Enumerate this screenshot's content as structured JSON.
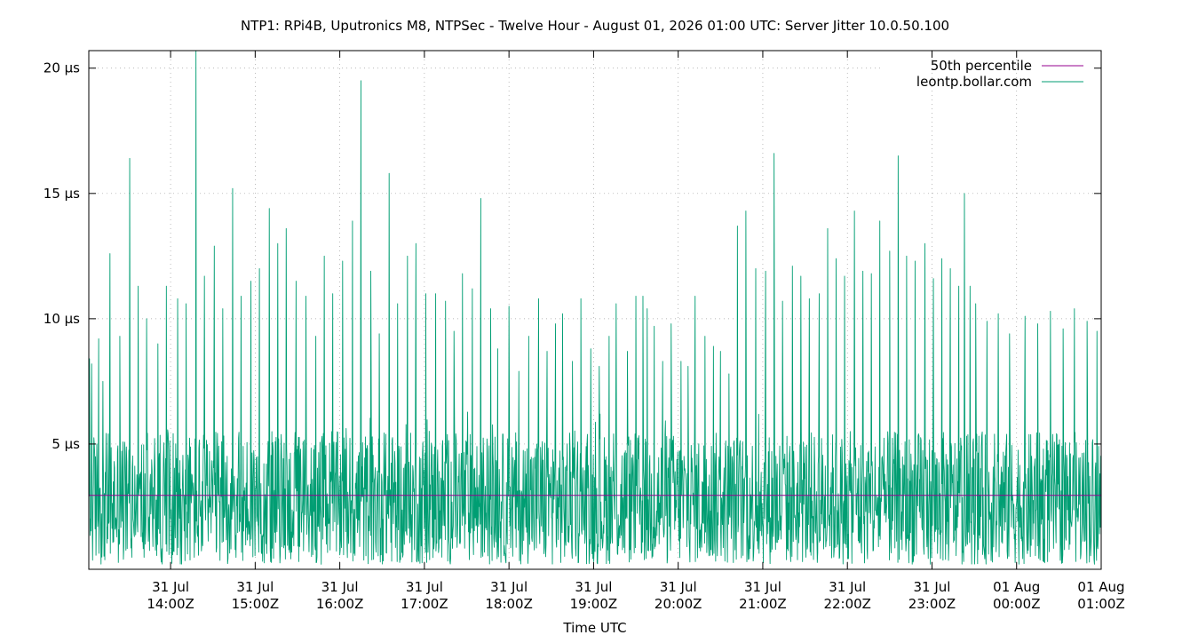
{
  "chart_data": {
    "type": "line",
    "title": "NTP1: RPi4B, Uputronics M8, NTPSec - Twelve Hour - August 01, 2026 01:00 UTC: Server Jitter 10.0.50.100",
    "xlabel": "Time UTC",
    "ylabel": "",
    "x_range": [
      "2026-07-31T13:02:00Z",
      "2026-08-01T01:00:00Z"
    ],
    "ylim": [
      0,
      20.7
    ],
    "grid": true,
    "legend_position": "top-right",
    "x_ticks": [
      {
        "x": "2026-07-31T14:00:00Z",
        "line1": "31 Jul",
        "line2": "14:00Z"
      },
      {
        "x": "2026-07-31T15:00:00Z",
        "line1": "31 Jul",
        "line2": "15:00Z"
      },
      {
        "x": "2026-07-31T16:00:00Z",
        "line1": "31 Jul",
        "line2": "16:00Z"
      },
      {
        "x": "2026-07-31T17:00:00Z",
        "line1": "31 Jul",
        "line2": "17:00Z"
      },
      {
        "x": "2026-07-31T18:00:00Z",
        "line1": "31 Jul",
        "line2": "18:00Z"
      },
      {
        "x": "2026-07-31T19:00:00Z",
        "line1": "31 Jul",
        "line2": "19:00Z"
      },
      {
        "x": "2026-07-31T20:00:00Z",
        "line1": "31 Jul",
        "line2": "20:00Z"
      },
      {
        "x": "2026-07-31T21:00:00Z",
        "line1": "31 Jul",
        "line2": "21:00Z"
      },
      {
        "x": "2026-07-31T22:00:00Z",
        "line1": "31 Jul",
        "line2": "22:00Z"
      },
      {
        "x": "2026-07-31T23:00:00Z",
        "line1": "31 Jul",
        "line2": "23:00Z"
      },
      {
        "x": "2026-08-01T00:00:00Z",
        "line1": "01 Aug",
        "line2": "00:00Z"
      },
      {
        "x": "2026-08-01T01:00:00Z",
        "line1": "01 Aug",
        "line2": "01:00Z"
      }
    ],
    "y_ticks": [
      {
        "y": 5,
        "label": "5 µs"
      },
      {
        "y": 10,
        "label": "10 µs"
      },
      {
        "y": 15,
        "label": "15 µs"
      },
      {
        "y": 20,
        "label": "20 µs"
      }
    ],
    "series": [
      {
        "name": "50th percentile",
        "color": "#94008f",
        "kind": "constant",
        "value": 2.95
      },
      {
        "name": "leontp.bollar.com",
        "color": "#009e73",
        "kind": "noisy",
        "baseline_min": 0.2,
        "baseline_max": 5.5,
        "peaks": [
          {
            "x": "2026-07-31T13:02:30Z",
            "y": 8.4
          },
          {
            "x": "2026-07-31T13:04:00Z",
            "y": 8.2
          },
          {
            "x": "2026-07-31T13:09:00Z",
            "y": 9.2
          },
          {
            "x": "2026-07-31T13:12:00Z",
            "y": 7.5
          },
          {
            "x": "2026-07-31T13:17:00Z",
            "y": 12.6
          },
          {
            "x": "2026-07-31T13:24:00Z",
            "y": 9.3
          },
          {
            "x": "2026-07-31T13:31:00Z",
            "y": 16.4
          },
          {
            "x": "2026-07-31T13:37:00Z",
            "y": 11.3
          },
          {
            "x": "2026-07-31T13:43:00Z",
            "y": 10.0
          },
          {
            "x": "2026-07-31T13:51:00Z",
            "y": 9.0
          },
          {
            "x": "2026-07-31T13:57:00Z",
            "y": 11.3
          },
          {
            "x": "2026-07-31T14:05:00Z",
            "y": 10.8
          },
          {
            "x": "2026-07-31T14:11:00Z",
            "y": 10.6
          },
          {
            "x": "2026-07-31T14:18:00Z",
            "y": 20.7
          },
          {
            "x": "2026-07-31T14:24:00Z",
            "y": 11.7
          },
          {
            "x": "2026-07-31T14:31:00Z",
            "y": 12.9
          },
          {
            "x": "2026-07-31T14:37:00Z",
            "y": 10.4
          },
          {
            "x": "2026-07-31T14:44:00Z",
            "y": 15.2
          },
          {
            "x": "2026-07-31T14:50:00Z",
            "y": 10.9
          },
          {
            "x": "2026-07-31T14:57:00Z",
            "y": 11.5
          },
          {
            "x": "2026-07-31T15:03:00Z",
            "y": 12.0
          },
          {
            "x": "2026-07-31T15:10:00Z",
            "y": 14.4
          },
          {
            "x": "2026-07-31T15:16:00Z",
            "y": 13.0
          },
          {
            "x": "2026-07-31T15:22:00Z",
            "y": 13.6
          },
          {
            "x": "2026-07-31T15:29:00Z",
            "y": 11.5
          },
          {
            "x": "2026-07-31T15:36:00Z",
            "y": 10.9
          },
          {
            "x": "2026-07-31T15:43:00Z",
            "y": 9.3
          },
          {
            "x": "2026-07-31T15:49:00Z",
            "y": 12.5
          },
          {
            "x": "2026-07-31T15:55:00Z",
            "y": 11.0
          },
          {
            "x": "2026-07-31T16:02:00Z",
            "y": 12.3
          },
          {
            "x": "2026-07-31T16:09:00Z",
            "y": 13.9
          },
          {
            "x": "2026-07-31T16:15:00Z",
            "y": 19.5
          },
          {
            "x": "2026-07-31T16:22:00Z",
            "y": 11.9
          },
          {
            "x": "2026-07-31T16:28:00Z",
            "y": 9.4
          },
          {
            "x": "2026-07-31T16:35:00Z",
            "y": 15.8
          },
          {
            "x": "2026-07-31T16:41:00Z",
            "y": 10.6
          },
          {
            "x": "2026-07-31T16:48:00Z",
            "y": 12.5
          },
          {
            "x": "2026-07-31T16:54:00Z",
            "y": 13.0
          },
          {
            "x": "2026-07-31T17:01:00Z",
            "y": 11.0
          },
          {
            "x": "2026-07-31T17:08:00Z",
            "y": 11.0
          },
          {
            "x": "2026-07-31T17:15:00Z",
            "y": 10.7
          },
          {
            "x": "2026-07-31T17:21:00Z",
            "y": 9.5
          },
          {
            "x": "2026-07-31T17:27:00Z",
            "y": 11.8
          },
          {
            "x": "2026-07-31T17:34:00Z",
            "y": 11.2
          },
          {
            "x": "2026-07-31T17:40:00Z",
            "y": 14.8
          },
          {
            "x": "2026-07-31T17:47:00Z",
            "y": 10.4
          },
          {
            "x": "2026-07-31T17:52:00Z",
            "y": 8.8
          },
          {
            "x": "2026-07-31T18:00:00Z",
            "y": 10.5
          },
          {
            "x": "2026-07-31T18:07:00Z",
            "y": 7.9
          },
          {
            "x": "2026-07-31T18:14:00Z",
            "y": 9.3
          },
          {
            "x": "2026-07-31T18:21:00Z",
            "y": 10.8
          },
          {
            "x": "2026-07-31T18:27:00Z",
            "y": 8.7
          },
          {
            "x": "2026-07-31T18:33:00Z",
            "y": 9.8
          },
          {
            "x": "2026-07-31T18:38:00Z",
            "y": 10.2
          },
          {
            "x": "2026-07-31T18:45:00Z",
            "y": 8.3
          },
          {
            "x": "2026-07-31T18:51:00Z",
            "y": 10.8
          },
          {
            "x": "2026-07-31T18:58:00Z",
            "y": 8.8
          },
          {
            "x": "2026-07-31T19:04:00Z",
            "y": 8.1
          },
          {
            "x": "2026-07-31T19:11:00Z",
            "y": 9.3
          },
          {
            "x": "2026-07-31T19:16:00Z",
            "y": 10.6
          },
          {
            "x": "2026-07-31T19:24:00Z",
            "y": 8.7
          },
          {
            "x": "2026-07-31T19:30:00Z",
            "y": 10.9
          },
          {
            "x": "2026-07-31T19:35:00Z",
            "y": 10.9
          },
          {
            "x": "2026-07-31T19:38:00Z",
            "y": 10.4
          },
          {
            "x": "2026-07-31T19:43:00Z",
            "y": 9.7
          },
          {
            "x": "2026-07-31T19:49:00Z",
            "y": 8.3
          },
          {
            "x": "2026-07-31T19:55:00Z",
            "y": 9.8
          },
          {
            "x": "2026-07-31T20:02:00Z",
            "y": 8.3
          },
          {
            "x": "2026-07-31T20:07:00Z",
            "y": 8.1
          },
          {
            "x": "2026-07-31T20:12:00Z",
            "y": 10.9
          },
          {
            "x": "2026-07-31T20:19:00Z",
            "y": 9.3
          },
          {
            "x": "2026-07-31T20:25:00Z",
            "y": 8.9
          },
          {
            "x": "2026-07-31T20:30:00Z",
            "y": 8.7
          },
          {
            "x": "2026-07-31T20:36:00Z",
            "y": 7.8
          },
          {
            "x": "2026-07-31T20:42:00Z",
            "y": 13.7
          },
          {
            "x": "2026-07-31T20:48:00Z",
            "y": 14.3
          },
          {
            "x": "2026-07-31T20:55:00Z",
            "y": 12.0
          },
          {
            "x": "2026-07-31T21:02:00Z",
            "y": 11.9
          },
          {
            "x": "2026-07-31T21:08:00Z",
            "y": 16.6
          },
          {
            "x": "2026-07-31T21:14:00Z",
            "y": 10.7
          },
          {
            "x": "2026-07-31T21:21:00Z",
            "y": 12.1
          },
          {
            "x": "2026-07-31T21:27:00Z",
            "y": 11.7
          },
          {
            "x": "2026-07-31T21:33:00Z",
            "y": 10.8
          },
          {
            "x": "2026-07-31T21:40:00Z",
            "y": 11.0
          },
          {
            "x": "2026-07-31T21:46:00Z",
            "y": 13.6
          },
          {
            "x": "2026-07-31T21:52:00Z",
            "y": 12.4
          },
          {
            "x": "2026-07-31T21:58:00Z",
            "y": 11.7
          },
          {
            "x": "2026-07-31T22:05:00Z",
            "y": 14.3
          },
          {
            "x": "2026-07-31T22:11:00Z",
            "y": 11.9
          },
          {
            "x": "2026-07-31T22:17:00Z",
            "y": 11.8
          },
          {
            "x": "2026-07-31T22:23:00Z",
            "y": 13.9
          },
          {
            "x": "2026-07-31T22:30:00Z",
            "y": 12.7
          },
          {
            "x": "2026-07-31T22:36:00Z",
            "y": 16.5
          },
          {
            "x": "2026-07-31T22:42:00Z",
            "y": 12.5
          },
          {
            "x": "2026-07-31T22:48:00Z",
            "y": 12.3
          },
          {
            "x": "2026-07-31T22:55:00Z",
            "y": 13.0
          },
          {
            "x": "2026-07-31T23:01:00Z",
            "y": 11.6
          },
          {
            "x": "2026-07-31T23:07:00Z",
            "y": 12.4
          },
          {
            "x": "2026-07-31T23:13:00Z",
            "y": 12.0
          },
          {
            "x": "2026-07-31T23:19:00Z",
            "y": 11.3
          },
          {
            "x": "2026-07-31T23:23:00Z",
            "y": 15.0
          },
          {
            "x": "2026-07-31T23:27:00Z",
            "y": 11.3
          },
          {
            "x": "2026-07-31T23:31:00Z",
            "y": 10.6
          },
          {
            "x": "2026-07-31T23:39:00Z",
            "y": 9.9
          },
          {
            "x": "2026-07-31T23:47:00Z",
            "y": 10.2
          },
          {
            "x": "2026-07-31T23:55:00Z",
            "y": 9.4
          },
          {
            "x": "2026-08-01T00:06:00Z",
            "y": 10.1
          },
          {
            "x": "2026-08-01T00:15:00Z",
            "y": 9.8
          },
          {
            "x": "2026-08-01T00:24:00Z",
            "y": 10.3
          },
          {
            "x": "2026-08-01T00:33:00Z",
            "y": 9.6
          },
          {
            "x": "2026-08-01T00:41:00Z",
            "y": 10.4
          },
          {
            "x": "2026-08-01T00:50:00Z",
            "y": 9.9
          },
          {
            "x": "2026-08-01T00:57:00Z",
            "y": 9.5
          }
        ]
      }
    ]
  }
}
